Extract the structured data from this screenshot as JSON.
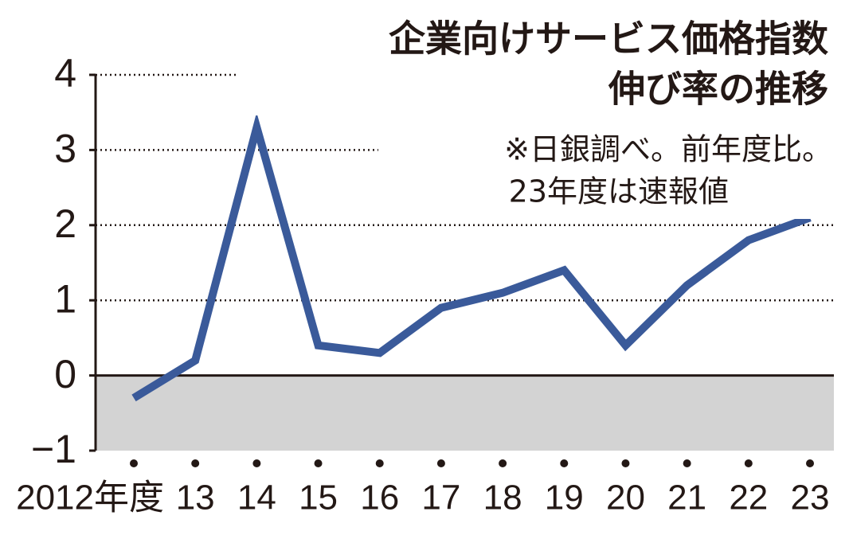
{
  "chart_data": {
    "type": "line",
    "title": [
      "企業向けサービス価格指数",
      "伸び率の推移"
    ],
    "note": [
      "※日銀調べ。前年度比。",
      "23年度は速報値"
    ],
    "categories": [
      "2012年度",
      "13",
      "14",
      "15",
      "16",
      "17",
      "18",
      "19",
      "20",
      "21",
      "22",
      "23"
    ],
    "series": [
      {
        "color": "#3a5a9a",
        "values": [
          -0.3,
          0.2,
          3.3,
          0.4,
          0.3,
          0.9,
          1.1,
          1.4,
          0.4,
          1.2,
          1.8,
          2.1
        ]
      }
    ],
    "ylim": [
      -1,
      4
    ],
    "yticks": [
      {
        "value": -1,
        "label": "−1"
      },
      0,
      1,
      2,
      3,
      4
    ],
    "grid": true,
    "negative_shade": "#d3d3d3"
  }
}
